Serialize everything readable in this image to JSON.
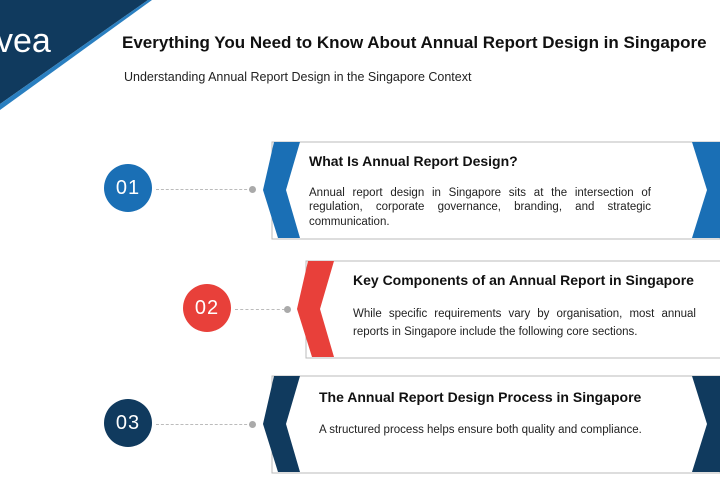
{
  "header": {
    "logo_text": "vea",
    "title": "Everything You Need to Know About Annual Report Design in Singapore",
    "subtitle": "Understanding Annual Report Design in the Singapore Context"
  },
  "colors": {
    "navy": "#103a5e",
    "blue": "#1a6fb5",
    "red": "#e8403a"
  },
  "sections": [
    {
      "number": "01",
      "title": "What Is Annual Report Design?",
      "body": "Annual report design in Singapore sits at the intersection of regulation, corporate governance, branding, and strategic communication.",
      "color": "#1a6fb5"
    },
    {
      "number": "02",
      "title": "Key Components of an Annual Report in Singapore",
      "body": "While specific requirements vary by organisation, most annual reports in Singapore include the following core sections.",
      "color": "#e8403a"
    },
    {
      "number": "03",
      "title": "The Annual Report Design Process in Singapore",
      "body": "A structured process helps ensure both quality and compliance.",
      "color": "#103a5e"
    }
  ]
}
